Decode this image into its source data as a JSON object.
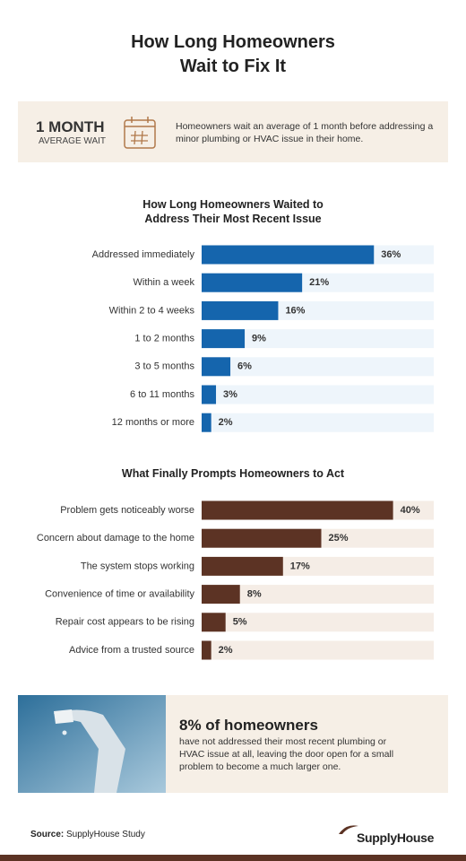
{
  "header": {
    "title": "How Long Homeowners Wait to Fix It"
  },
  "summary": {
    "stat": "1 MONTH",
    "stat_label": "AVERAGE WAIT",
    "text": "Homeowners wait an average of 1 month before addressing a minor plumbing or HVAC issue in their home."
  },
  "chart_data": [
    {
      "type": "bar",
      "orientation": "horizontal",
      "title": "How Long Homeowners Waited to Address Their Most Recent Issue",
      "categories": [
        "Addressed immediately",
        "Within a week",
        "Within 2 to 4 weeks",
        "1 to 2 months",
        "3 to 5 months",
        "6 to 11 months",
        "12 months or more"
      ],
      "values": [
        36,
        21,
        16,
        9,
        6,
        3,
        2
      ],
      "value_labels": [
        "36%",
        "21%",
        "16%",
        "9%",
        "6%",
        "3%",
        "2%"
      ],
      "xlim": [
        0,
        48.5
      ],
      "color": "#1565ad",
      "track_color": "#eef5fb"
    },
    {
      "type": "bar",
      "orientation": "horizontal",
      "title": "What Finally Prompts Homeowners to Act",
      "categories": [
        "Problem gets noticeably worse",
        "Concern about damage to the home",
        "The system stops working",
        "Convenience of time or availability",
        "Repair cost appears to be rising",
        "Advice from a trusted source"
      ],
      "values": [
        40,
        25,
        17,
        8,
        5,
        2
      ],
      "value_labels": [
        "40%",
        "25%",
        "17%",
        "8%",
        "5%",
        "2%"
      ],
      "xlim": [
        0,
        48.5
      ],
      "color": "#5c3324",
      "track_color": "#f5ede6"
    }
  ],
  "highlight": {
    "title": "8% of homeowners",
    "text": "have not addressed their most recent plumbing or HVAC issue at all, leaving the door open for a small problem to become a much larger one."
  },
  "footer": {
    "source_label": "Source:",
    "source": "SupplyHouse Study",
    "brand": "SupplyHouse"
  }
}
